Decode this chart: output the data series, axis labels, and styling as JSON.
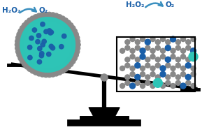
{
  "bg_color": "#ffffff",
  "teal_color": "#2EC4B6",
  "blue_color": "#1a5fa8",
  "gray_color": "#808080",
  "dark_gray": "#404040",
  "arrow_color": "#3a8fbf",
  "text_color": "#1a5fa8",
  "h2o2_label": "H₂O₂",
  "o2_label": "O₂",
  "figsize": [
    2.99,
    1.89
  ],
  "dpi": 100
}
